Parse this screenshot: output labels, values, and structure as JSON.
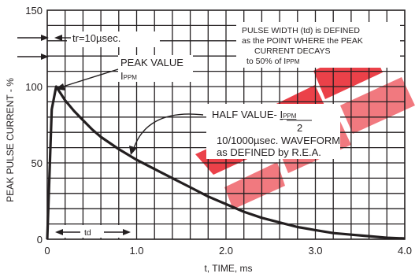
{
  "chart_data": {
    "type": "line",
    "xlabel": "t, TIME, ms",
    "ylabel": "PEAK PULSE CURRENT - %",
    "xlim": [
      0,
      4.0
    ],
    "ylim": [
      0,
      150
    ],
    "x_ticks": [
      "0",
      "1.0",
      "2.0",
      "3.0",
      "4.0"
    ],
    "y_ticks": [
      "0",
      "50",
      "100",
      "150"
    ],
    "grid": true,
    "series": [
      {
        "x": [
          0,
          0.05,
          0.1,
          0.2,
          0.3,
          0.4,
          0.5,
          0.6,
          0.8,
          1.0,
          1.2,
          1.4,
          1.6,
          1.8,
          2.0,
          2.2,
          2.4,
          2.6,
          2.8,
          3.0,
          3.2,
          3.4,
          3.6,
          3.8,
          4.0
        ],
        "y": [
          0,
          85,
          100,
          91,
          84,
          78,
          72,
          67,
          59,
          52,
          46,
          40,
          34,
          28,
          23,
          18,
          14,
          11,
          8,
          6,
          4,
          3,
          2,
          1,
          0.5
        ]
      }
    ],
    "annotations": {
      "tr": "tr=10µsec.",
      "peak_line1": "PEAK VALUE",
      "peak_line2": "I",
      "peak_sub": "PPM",
      "pulse_width_lines": [
        "PULSE WIDTH (td) is DEFINED",
        "as the POINT WHERE the PEAK",
        "CURRENT DECAYS",
        "to 50% of I"
      ],
      "pulse_width_sub": "PPM",
      "half_value_prefix": "HALF VALUE- ",
      "half_value_i": "I",
      "half_value_sub": "PPM",
      "half_value_den": "2",
      "waveform_line1": "10/1000µsec. WAVEFORM",
      "waveform_line2": "as DEFINED by R.E.A.",
      "td": "td"
    },
    "colors": {
      "curve": "#231f20",
      "grid": "#231f20",
      "watermark": "#e8202a"
    }
  }
}
